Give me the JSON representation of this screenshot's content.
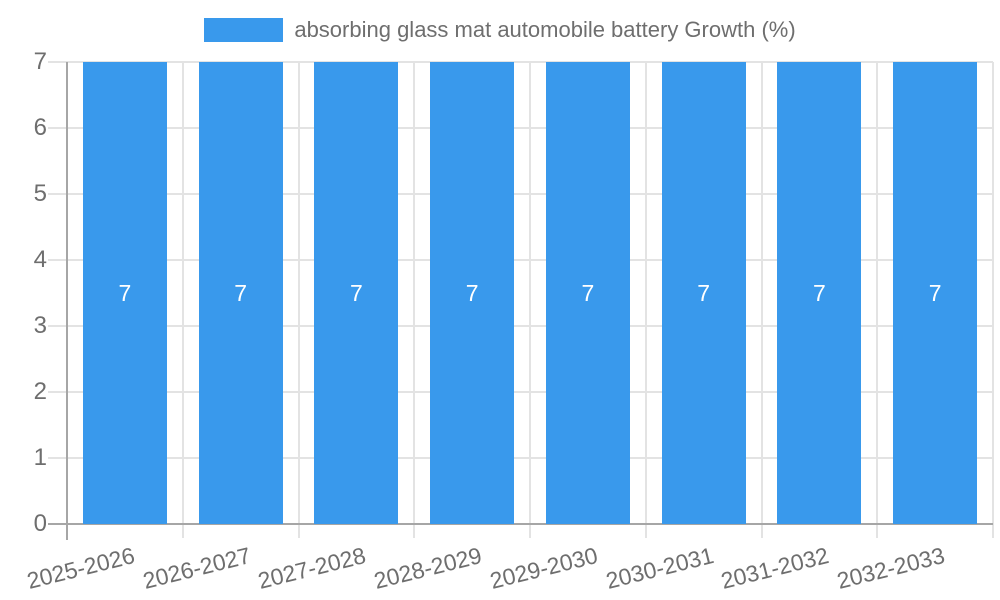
{
  "legend": {
    "label": "absorbing glass mat automobile battery Growth (%)"
  },
  "colors": {
    "bar": "#3999EC",
    "axis": "#A6A6A6",
    "grid": "#E3E3E3",
    "text": "#6E6E6E",
    "value_label": "#FFFFFF",
    "background": "#FFFFFF"
  },
  "chart_data": {
    "type": "bar",
    "title": "",
    "xlabel": "",
    "ylabel": "",
    "categories": [
      "2025-2026",
      "2026-2027",
      "2027-2028",
      "2028-2029",
      "2029-2030",
      "2030-2031",
      "2031-2032",
      "2032-2033"
    ],
    "series": [
      {
        "name": "absorbing glass mat automobile battery Growth (%)",
        "values": [
          7,
          7,
          7,
          7,
          7,
          7,
          7,
          7
        ],
        "color": "#3999EC"
      }
    ],
    "value_labels": [
      "7",
      "7",
      "7",
      "7",
      "7",
      "7",
      "7",
      "7"
    ],
    "ylim": [
      0,
      7
    ],
    "y_ticks": [
      0,
      1,
      2,
      3,
      4,
      5,
      6,
      7
    ],
    "grid": true,
    "legend_position": "top",
    "bar_label_position": "center",
    "x_tick_rotation_deg": -14
  }
}
